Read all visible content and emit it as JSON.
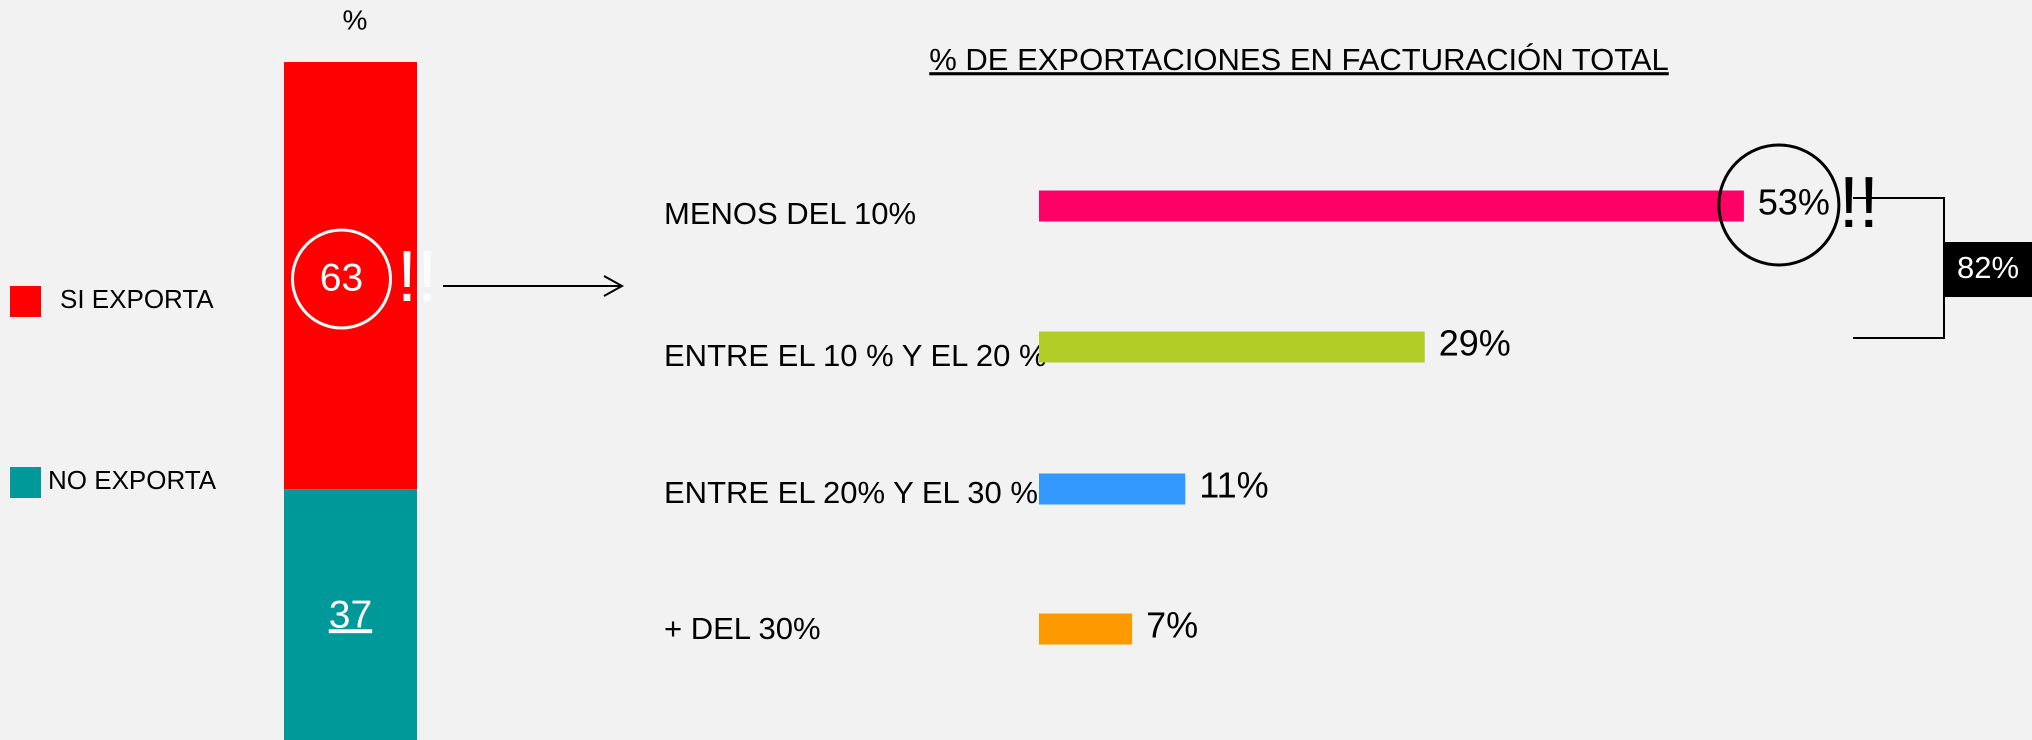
{
  "chart_data": [
    {
      "type": "stacked_bar",
      "title": "%",
      "categories": [
        null
      ],
      "series": [
        {
          "name": "SI EXPORTA",
          "color": "#ff0000",
          "values": [
            63
          ]
        },
        {
          "name": "NO EXPORTA",
          "color": "#009999",
          "values": [
            37
          ]
        }
      ],
      "ylim": [
        0,
        100
      ],
      "legend": "left",
      "annotation": "!!"
    },
    {
      "type": "hbar",
      "title": "% DE EXPORTACIONES EN FACTURACIÓN TOTAL",
      "categories": [
        "MENOS DEL 10%",
        "ENTRE EL 10 % Y EL 20 %",
        "ENTRE EL 20% Y EL 30 %",
        "+ DEL 30%"
      ],
      "values": [
        53,
        29,
        11,
        7
      ],
      "value_labels": [
        "53%",
        "29%",
        "11%",
        "7%"
      ],
      "colors": [
        "#ff0066",
        "#b2cc28",
        "#3399ff",
        "#ff9900"
      ],
      "xlim": [
        0,
        100
      ],
      "annotation": "!!",
      "bracket_label": "82%"
    }
  ]
}
